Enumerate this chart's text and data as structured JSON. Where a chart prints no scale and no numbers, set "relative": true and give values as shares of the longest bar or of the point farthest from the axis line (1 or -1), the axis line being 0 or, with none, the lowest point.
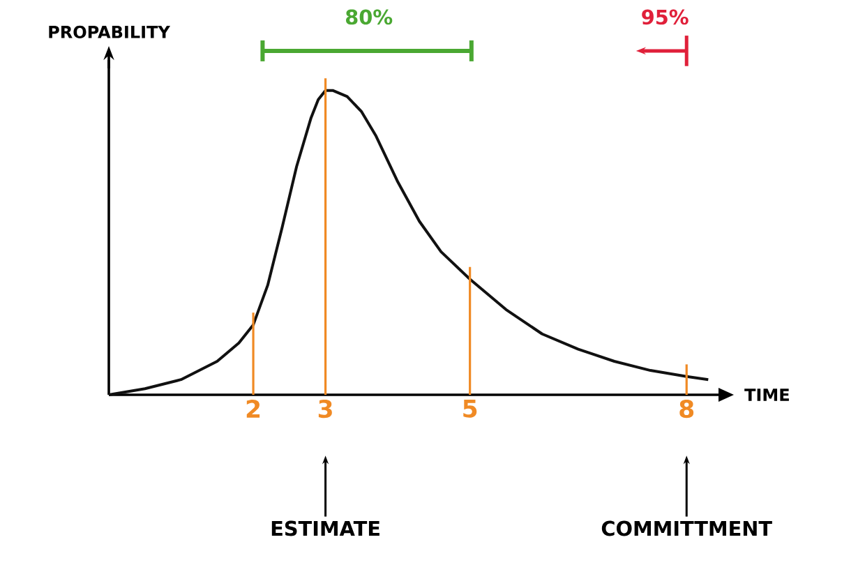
{
  "chart_data": {
    "type": "line",
    "relative": true,
    "xlabel": "TIME",
    "ylabel": "PROPABILITY",
    "x": [
      0,
      0.5,
      1,
      1.5,
      1.8,
      2,
      2.2,
      2.4,
      2.6,
      2.8,
      2.9,
      3,
      3.1,
      3.3,
      3.5,
      3.7,
      4,
      4.3,
      4.6,
      5,
      5.5,
      6,
      6.5,
      7,
      7.5,
      8,
      8.3
    ],
    "series": [
      {
        "color": "#111111",
        "values": [
          0,
          0.02,
          0.05,
          0.11,
          0.17,
          0.23,
          0.36,
          0.55,
          0.75,
          0.91,
          0.97,
          1.0,
          1.0,
          0.98,
          0.93,
          0.85,
          0.7,
          0.57,
          0.47,
          0.38,
          0.28,
          0.2,
          0.15,
          0.11,
          0.08,
          0.06,
          0.05
        ]
      }
    ],
    "xlim": [
      0,
      8.5
    ],
    "xticks": [
      2,
      3,
      5,
      8
    ],
    "ref_lines": [
      {
        "axis": "x",
        "value": 2,
        "color": "#f08a24"
      },
      {
        "axis": "x",
        "value": 3,
        "color": "#f08a24"
      },
      {
        "axis": "x",
        "value": 5,
        "color": "#f08a24"
      },
      {
        "axis": "x",
        "value": 8,
        "color": "#f08a24"
      }
    ],
    "annotations": [
      "80%",
      "95%",
      "ESTIMATE",
      "COMMITTMENT"
    ],
    "marker": "none",
    "line_style": "solid",
    "grid": false
  }
}
